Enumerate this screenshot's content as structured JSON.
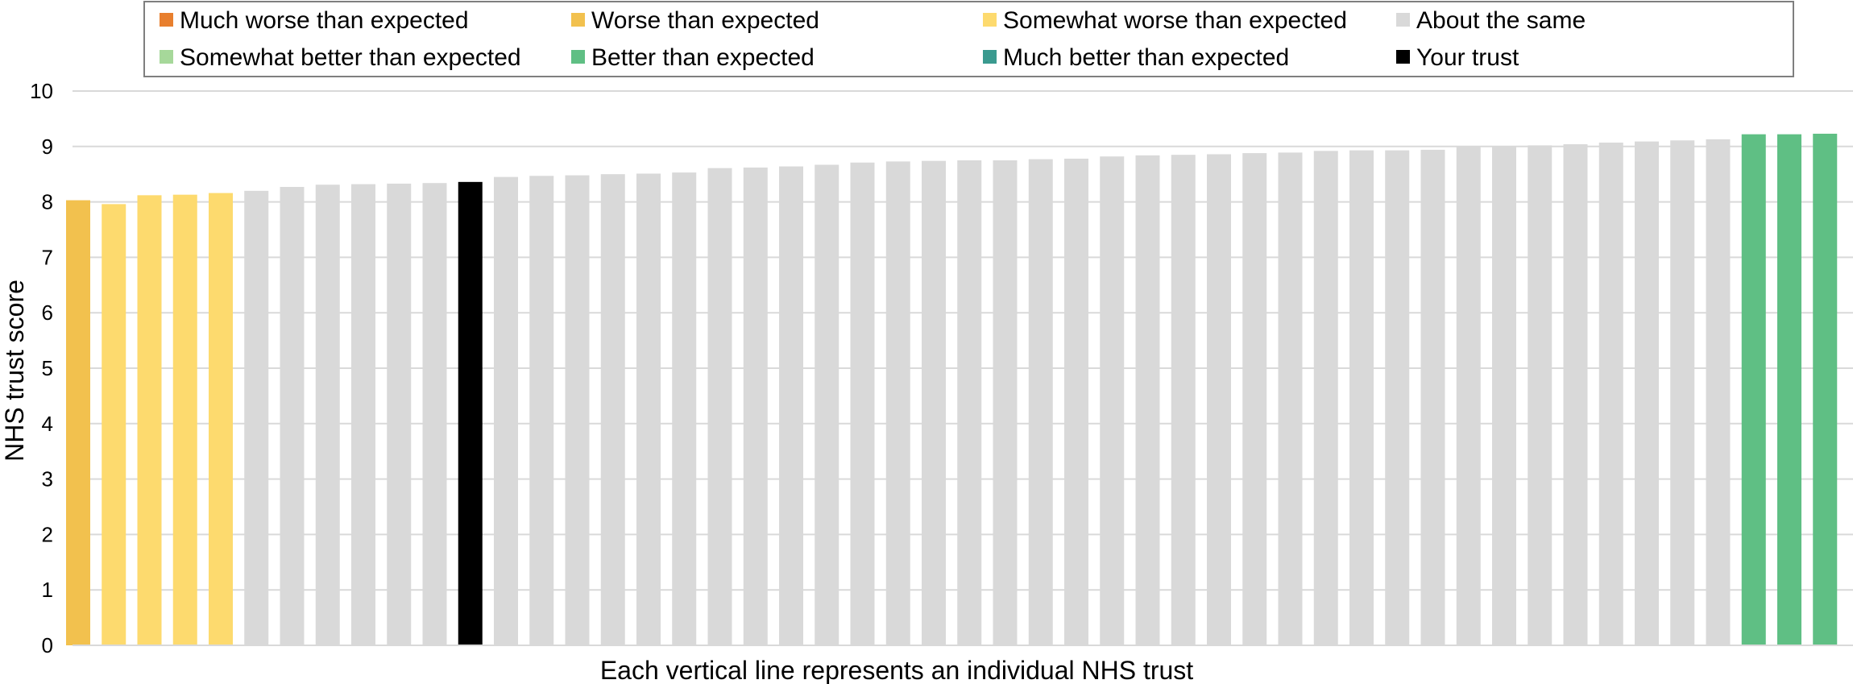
{
  "chart_data": {
    "type": "bar",
    "ylabel": "NHS trust score",
    "xlabel": "Each vertical line represents an individual NHS trust",
    "ylim": [
      0,
      10
    ],
    "yticks": [
      0,
      1,
      2,
      3,
      4,
      5,
      6,
      7,
      8,
      9,
      10
    ],
    "grid": true,
    "legend_position": "top",
    "legend": [
      {
        "key": "much_worse",
        "label": "Much worse than expected",
        "color": "#E87F2E"
      },
      {
        "key": "worse",
        "label": "Worse than expected",
        "color": "#F2C14E"
      },
      {
        "key": "somewhat_worse",
        "label": "Somewhat worse than expected",
        "color": "#FDDA6E"
      },
      {
        "key": "same",
        "label": "About the same",
        "color": "#D9D9D9"
      },
      {
        "key": "somewhat_better",
        "label": "Somewhat better than expected",
        "color": "#A6D89A"
      },
      {
        "key": "better",
        "label": "Better than expected",
        "color": "#5FBF84"
      },
      {
        "key": "much_better",
        "label": "Much better than expected",
        "color": "#3A9A8F"
      },
      {
        "key": "your_trust",
        "label": "Your trust",
        "color": "#000000"
      }
    ],
    "values": [
      8.03,
      7.96,
      8.12,
      8.13,
      8.16,
      8.2,
      8.27,
      8.31,
      8.32,
      8.33,
      8.34,
      8.36,
      8.45,
      8.47,
      8.48,
      8.5,
      8.51,
      8.53,
      8.61,
      8.62,
      8.64,
      8.67,
      8.71,
      8.73,
      8.74,
      8.75,
      8.75,
      8.77,
      8.78,
      8.82,
      8.84,
      8.85,
      8.86,
      8.88,
      8.89,
      8.92,
      8.93,
      8.93,
      8.94,
      9.0,
      9.01,
      9.02,
      9.04,
      9.07,
      9.09,
      9.11,
      9.13,
      9.22,
      9.22,
      9.23
    ],
    "categories": [
      "worse",
      "somewhat_worse",
      "somewhat_worse",
      "somewhat_worse",
      "somewhat_worse",
      "same",
      "same",
      "same",
      "same",
      "same",
      "same",
      "your_trust",
      "same",
      "same",
      "same",
      "same",
      "same",
      "same",
      "same",
      "same",
      "same",
      "same",
      "same",
      "same",
      "same",
      "same",
      "same",
      "same",
      "same",
      "same",
      "same",
      "same",
      "same",
      "same",
      "same",
      "same",
      "same",
      "same",
      "same",
      "same",
      "same",
      "same",
      "same",
      "same",
      "same",
      "same",
      "same",
      "better",
      "better",
      "better"
    ]
  }
}
